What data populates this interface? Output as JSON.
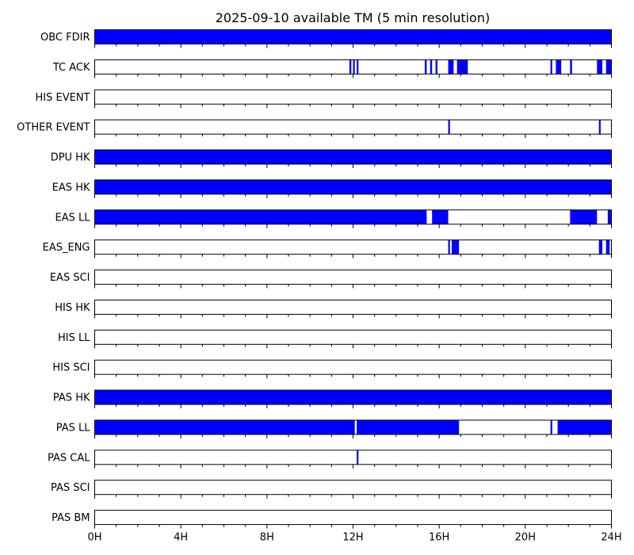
{
  "chart_data": {
    "type": "bar",
    "title": "2025-09-10 available TM (5 min resolution)",
    "xlabel": "",
    "ylabel": "",
    "x_unit": "hours",
    "xlim": [
      0,
      24
    ],
    "x_ticks": [
      0,
      4,
      8,
      12,
      16,
      20,
      24
    ],
    "x_tick_labels": [
      "0H",
      "4H",
      "8H",
      "12H",
      "16H",
      "20H",
      "24H"
    ],
    "minor_tick_step_hours": 1,
    "grid": false,
    "legend": "none",
    "colors": {
      "available": "#0000ff",
      "frame": "#000000",
      "background": "#ffffff"
    },
    "rows": [
      {
        "name": "OBC FDIR",
        "intervals": [
          [
            0,
            24
          ]
        ]
      },
      {
        "name": "TC ACK",
        "intervals": [
          [
            11.83,
            11.92
          ],
          [
            12.0,
            12.08
          ],
          [
            12.17,
            12.25
          ],
          [
            15.33,
            15.42
          ],
          [
            15.58,
            15.67
          ],
          [
            15.83,
            15.92
          ],
          [
            16.42,
            16.67
          ],
          [
            16.83,
            17.33
          ],
          [
            21.17,
            21.25
          ],
          [
            21.42,
            21.67
          ],
          [
            22.08,
            22.17
          ],
          [
            23.33,
            23.58
          ],
          [
            23.75,
            24.0
          ]
        ]
      },
      {
        "name": "HIS EVENT",
        "intervals": []
      },
      {
        "name": "OTHER EVENT",
        "intervals": [
          [
            16.42,
            16.5
          ],
          [
            23.42,
            23.5
          ]
        ]
      },
      {
        "name": "DPU HK",
        "intervals": [
          [
            0,
            24
          ]
        ]
      },
      {
        "name": "EAS HK",
        "intervals": [
          [
            0,
            24
          ]
        ]
      },
      {
        "name": "EAS LL",
        "intervals": [
          [
            0,
            15.42
          ],
          [
            15.67,
            16.42
          ],
          [
            22.08,
            23.33
          ],
          [
            23.83,
            24.0
          ]
        ]
      },
      {
        "name": "EAS_ENG",
        "intervals": [
          [
            16.42,
            16.5
          ],
          [
            16.58,
            16.92
          ],
          [
            23.42,
            23.58
          ],
          [
            23.75,
            23.92
          ]
        ]
      },
      {
        "name": "EAS SCI",
        "intervals": []
      },
      {
        "name": "HIS HK",
        "intervals": []
      },
      {
        "name": "HIS LL",
        "intervals": []
      },
      {
        "name": "HIS SCI",
        "intervals": []
      },
      {
        "name": "PAS HK",
        "intervals": [
          [
            0,
            24
          ]
        ]
      },
      {
        "name": "PAS LL",
        "intervals": [
          [
            0,
            12.08
          ],
          [
            12.17,
            16.92
          ],
          [
            21.17,
            21.25
          ],
          [
            21.5,
            24.0
          ]
        ]
      },
      {
        "name": "PAS CAL",
        "intervals": [
          [
            12.17,
            12.25
          ]
        ]
      },
      {
        "name": "PAS SCI",
        "intervals": []
      },
      {
        "name": "PAS BM",
        "intervals": []
      }
    ]
  }
}
